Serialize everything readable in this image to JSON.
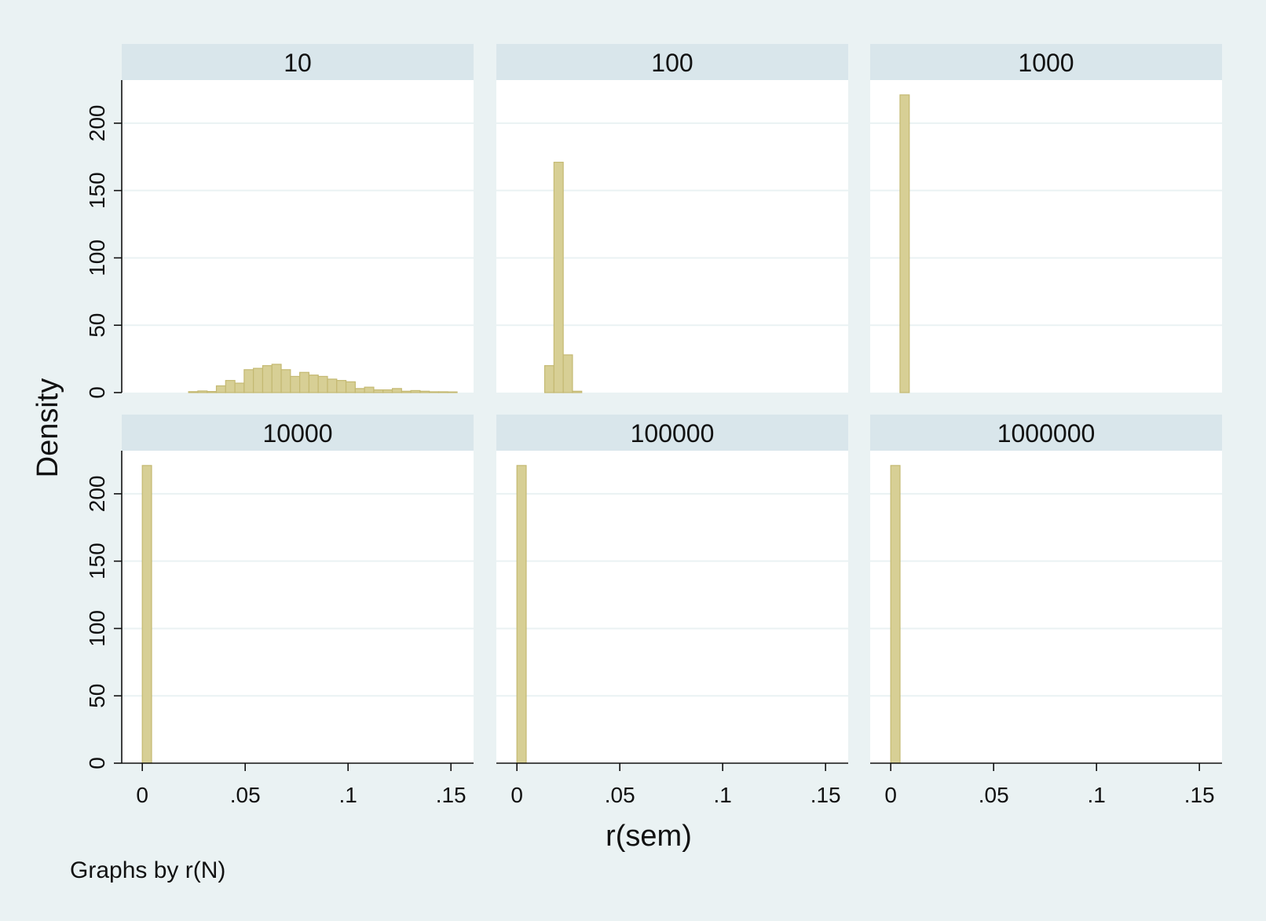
{
  "chart_data": {
    "type": "bar",
    "subtype": "histogram-small-multiples",
    "xlabel": "r(sem)",
    "ylabel": "Density",
    "note": "Graphs by r(N)",
    "xlim": [
      -0.01,
      0.161
    ],
    "ylim": [
      0,
      232
    ],
    "x_ticks": [
      0,
      0.05,
      0.1,
      0.15
    ],
    "x_tick_labels": [
      "0",
      ".05",
      ".1",
      ".15"
    ],
    "y_ticks": [
      0,
      50,
      100,
      150,
      200
    ],
    "y_tick_labels": [
      "0",
      "50",
      "100",
      "150",
      "200"
    ],
    "bar_color": "#d7cf95",
    "bar_edge_color": "#c4b972",
    "grid": true,
    "panels": [
      {
        "label": "10",
        "bin_width": 0.0045,
        "bins": [
          [
            0.0225,
            0.7
          ],
          [
            0.027,
            1.2
          ],
          [
            0.0315,
            0.8
          ],
          [
            0.036,
            5
          ],
          [
            0.0405,
            9
          ],
          [
            0.045,
            7
          ],
          [
            0.0495,
            17
          ],
          [
            0.054,
            18
          ],
          [
            0.0585,
            20
          ],
          [
            0.063,
            21
          ],
          [
            0.0675,
            17
          ],
          [
            0.072,
            12
          ],
          [
            0.0765,
            15
          ],
          [
            0.081,
            13
          ],
          [
            0.0855,
            12
          ],
          [
            0.09,
            10
          ],
          [
            0.0945,
            9
          ],
          [
            0.099,
            8
          ],
          [
            0.1035,
            3
          ],
          [
            0.108,
            4
          ],
          [
            0.1125,
            2
          ],
          [
            0.117,
            2
          ],
          [
            0.1215,
            3
          ],
          [
            0.126,
            1
          ],
          [
            0.1305,
            1.5
          ],
          [
            0.135,
            1
          ],
          [
            0.1395,
            0.6
          ],
          [
            0.144,
            0.6
          ],
          [
            0.1485,
            0.5
          ]
        ]
      },
      {
        "label": "100",
        "bin_width": 0.0045,
        "bins": [
          [
            0.0135,
            20
          ],
          [
            0.018,
            171
          ],
          [
            0.0225,
            28
          ],
          [
            0.027,
            1
          ]
        ]
      },
      {
        "label": "1000",
        "bin_width": 0.0045,
        "bins": [
          [
            0.0045,
            221
          ]
        ]
      },
      {
        "label": "10000",
        "bin_width": 0.0045,
        "bins": [
          [
            0.0,
            221
          ]
        ]
      },
      {
        "label": "100000",
        "bin_width": 0.0045,
        "bins": [
          [
            0.0,
            221
          ]
        ]
      },
      {
        "label": "1000000",
        "bin_width": 0.0045,
        "bins": [
          [
            0.0,
            221
          ]
        ]
      }
    ]
  }
}
